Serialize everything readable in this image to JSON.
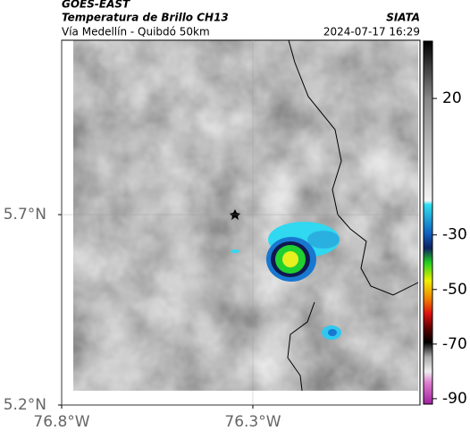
{
  "header": {
    "title": "GOES-EAST",
    "subtitle": "Temperatura de Brillo CH13",
    "source": "SIATA",
    "region": "Vía Medellín - Quibdó 50km",
    "timestamp": "2024-07-17 16:29"
  },
  "map": {
    "lat_range": [
      5.2,
      6.158
    ],
    "lon_range": [
      -76.8,
      -75.863
    ],
    "lat_ticks": [
      {
        "value": 5.7,
        "label": "5.7°N"
      },
      {
        "value": 5.2,
        "label": "5.2°N"
      }
    ],
    "lon_ticks": [
      {
        "value": -76.8,
        "label": "76.8°W"
      },
      {
        "value": -76.3,
        "label": "76.3°W"
      }
    ],
    "colorbar": {
      "range": [
        -92,
        41
      ],
      "ticks": [
        20,
        -30,
        -50,
        -70,
        -90
      ]
    }
  }
}
